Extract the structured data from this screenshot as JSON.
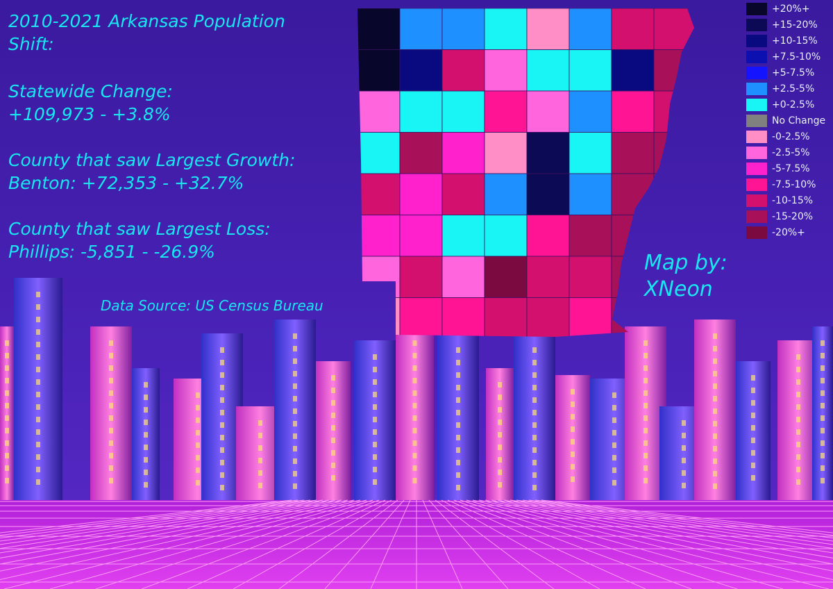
{
  "header": {
    "title": "2010-2021 Arkansas Population Shift:"
  },
  "stats": [
    {
      "label": "Statewide Change:",
      "value": "+109,973 - +3.8%"
    },
    {
      "label": "County that saw Largest Growth:",
      "value": "Benton: +72,353 - +32.7%"
    },
    {
      "label": "County that saw Largest Loss:",
      "value": "Phillips: -5,851 - -26.9%"
    }
  ],
  "source": "Data Source: US Census Bureau",
  "credit": {
    "label": "Map by:",
    "author": "XNeon"
  },
  "legend": {
    "items": [
      {
        "label": "+20%+",
        "color": "#08062a"
      },
      {
        "label": "+15-20%",
        "color": "#0c0a55"
      },
      {
        "label": "+10-15%",
        "color": "#0a0a80"
      },
      {
        "label": "+7.5-10%",
        "color": "#0d10b0"
      },
      {
        "label": "+5-7.5%",
        "color": "#1414ff"
      },
      {
        "label": "+2.5-5%",
        "color": "#1e90ff"
      },
      {
        "label": "+0-2.5%",
        "color": "#19f5f5"
      },
      {
        "label": "No Change",
        "color": "#808080"
      },
      {
        "label": "-0-2.5%",
        "color": "#ff8ec6"
      },
      {
        "label": "-2.5-5%",
        "color": "#ff66dd"
      },
      {
        "label": "-5-7.5%",
        "color": "#ff22cc"
      },
      {
        "label": "-7.5-10%",
        "color": "#ff1493"
      },
      {
        "label": "-10-15%",
        "color": "#d4106e"
      },
      {
        "label": "-15-20%",
        "color": "#a8105a"
      },
      {
        "label": "-20%+",
        "color": "#7a0a40"
      }
    ]
  }
}
